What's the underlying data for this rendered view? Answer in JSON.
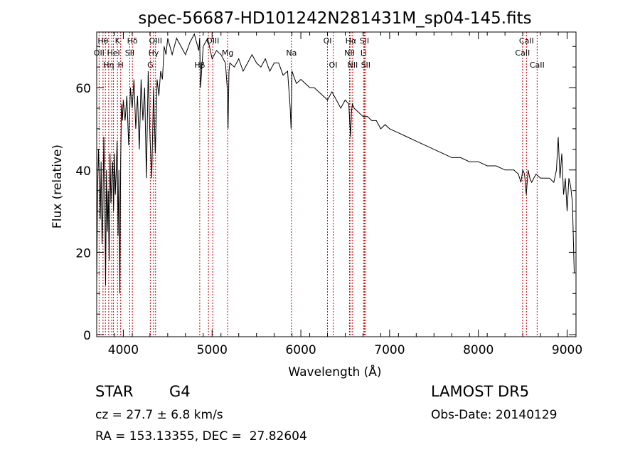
{
  "chart_data": {
    "type": "line",
    "title": "spec-56687-HD101242N281431M_sp04-145.fits",
    "xlabel": "Wavelength (Å)",
    "ylabel": "Flux (relative)",
    "xlim": [
      3700,
      9100
    ],
    "ylim": [
      -0.5,
      73.5
    ],
    "xticks": [
      4000,
      5000,
      6000,
      7000,
      8000,
      9000
    ],
    "yticks": [
      0,
      20,
      40,
      60
    ],
    "grid": false,
    "line_color": "#000000",
    "marker_color": "#cc0000",
    "series": [
      {
        "x": [
          3700,
          3710,
          3720,
          3730,
          3740,
          3750,
          3760,
          3770,
          3780,
          3790,
          3800,
          3810,
          3820,
          3830,
          3840,
          3850,
          3860,
          3870,
          3880,
          3890,
          3900,
          3910,
          3920,
          3930,
          3940,
          3950,
          3960,
          3970,
          3980,
          3990,
          4000,
          4020,
          4040,
          4060,
          4080,
          4100,
          4120,
          4140,
          4160,
          4180,
          4200,
          4220,
          4240,
          4260,
          4280,
          4300,
          4320,
          4340,
          4360,
          4380,
          4400,
          4420,
          4440,
          4460,
          4480,
          4500,
          4550,
          4600,
          4650,
          4700,
          4750,
          4800,
          4850,
          4860,
          4870,
          4900,
          4950,
          5000,
          5050,
          5100,
          5150,
          5170,
          5180,
          5190,
          5200,
          5250,
          5300,
          5350,
          5400,
          5450,
          5500,
          5550,
          5600,
          5650,
          5700,
          5750,
          5800,
          5850,
          5880,
          5890,
          5900,
          5950,
          6000,
          6050,
          6100,
          6150,
          6200,
          6250,
          6300,
          6350,
          6400,
          6450,
          6500,
          6540,
          6560,
          6570,
          6580,
          6600,
          6650,
          6700,
          6750,
          6800,
          6850,
          6900,
          6950,
          7000,
          7100,
          7200,
          7300,
          7400,
          7500,
          7600,
          7700,
          7800,
          7900,
          8000,
          8100,
          8200,
          8300,
          8400,
          8450,
          8480,
          8500,
          8520,
          8540,
          8560,
          8580,
          8600,
          8650,
          8700,
          8750,
          8800,
          8850,
          8880,
          8900,
          8920,
          8940,
          8960,
          8980,
          9000,
          9020,
          9040,
          9060,
          9080
        ],
        "y": [
          12,
          35,
          45,
          38,
          28,
          42,
          22,
          30,
          48,
          36,
          12,
          40,
          25,
          35,
          18,
          44,
          32,
          38,
          42,
          30,
          44,
          34,
          40,
          47,
          24,
          40,
          10,
          42,
          56,
          52,
          57,
          52,
          58,
          46,
          60,
          55,
          62,
          50,
          58,
          45,
          62,
          52,
          60,
          38,
          64,
          48,
          38,
          60,
          44,
          62,
          58,
          64,
          62,
          70,
          68,
          72,
          68,
          72,
          70,
          68,
          71,
          73,
          69,
          72,
          60,
          70,
          72,
          67,
          69,
          68,
          66,
          60,
          50,
          64,
          66,
          65,
          67,
          64,
          66,
          68,
          66,
          65,
          67,
          64,
          66,
          66,
          63,
          64,
          55,
          50,
          64,
          61,
          62,
          61,
          60,
          60,
          59,
          58,
          57,
          59,
          57,
          55,
          57,
          56,
          48,
          54,
          56,
          55,
          54,
          53,
          53,
          52,
          52,
          50,
          51,
          50,
          49,
          48,
          47,
          46,
          45,
          44,
          43,
          43,
          42,
          42,
          41,
          41,
          40,
          40,
          39,
          37,
          40,
          39,
          34,
          40,
          38,
          37,
          39,
          38,
          38,
          38,
          37,
          40,
          48,
          38,
          44,
          34,
          38,
          30,
          38,
          36,
          32,
          15
        ]
      }
    ],
    "lines": [
      {
        "wl": 3727,
        "label": "OII",
        "row": 1
      },
      {
        "wl": 3771,
        "label": "Hθ",
        "row": 0
      },
      {
        "wl": 3798,
        "label": "",
        "row": 0
      },
      {
        "wl": 3835,
        "label": "Hη",
        "row": 2
      },
      {
        "wl": 3869,
        "label": "",
        "row": 0
      },
      {
        "wl": 3889,
        "label": "HeI",
        "row": 1
      },
      {
        "wl": 3934,
        "label": "K",
        "row": 0
      },
      {
        "wl": 3970,
        "label": "H",
        "row": 2
      },
      {
        "wl": 4072,
        "label": "SII",
        "row": 1
      },
      {
        "wl": 4102,
        "label": "Hδ",
        "row": 0
      },
      {
        "wl": 4304,
        "label": "G",
        "row": 2
      },
      {
        "wl": 4341,
        "label": "Hγ",
        "row": 1
      },
      {
        "wl": 4363,
        "label": "OIII",
        "row": 0
      },
      {
        "wl": 4861,
        "label": "Hβ",
        "row": 2
      },
      {
        "wl": 4959,
        "label": "",
        "row": 0
      },
      {
        "wl": 5007,
        "label": "OIII",
        "row": 0
      },
      {
        "wl": 5175,
        "label": "Mg",
        "row": 1
      },
      {
        "wl": 5894,
        "label": "Na",
        "row": 1
      },
      {
        "wl": 6300,
        "label": "OI",
        "row": 0
      },
      {
        "wl": 6364,
        "label": "OI",
        "row": 2
      },
      {
        "wl": 6548,
        "label": "NII",
        "row": 1
      },
      {
        "wl": 6563,
        "label": "Hα",
        "row": 0
      },
      {
        "wl": 6583,
        "label": "NII",
        "row": 2
      },
      {
        "wl": 6707,
        "label": "Li",
        "row": 1
      },
      {
        "wl": 6716,
        "label": "SII",
        "row": 0
      },
      {
        "wl": 6731,
        "label": "SII",
        "row": 2
      },
      {
        "wl": 8498,
        "label": "CaII",
        "row": 1
      },
      {
        "wl": 8542,
        "label": "CaII",
        "row": 0
      },
      {
        "wl": 8662,
        "label": "CaII",
        "row": 2
      }
    ]
  },
  "info": {
    "object_class": "STAR",
    "subclass": "G4",
    "survey": "LAMOST DR5",
    "cz": "cz = 27.7 ± 6.8 km/s",
    "obs_date": "Obs-Date: 20140129",
    "radec": "RA = 153.13355, DEC =  27.82604"
  }
}
